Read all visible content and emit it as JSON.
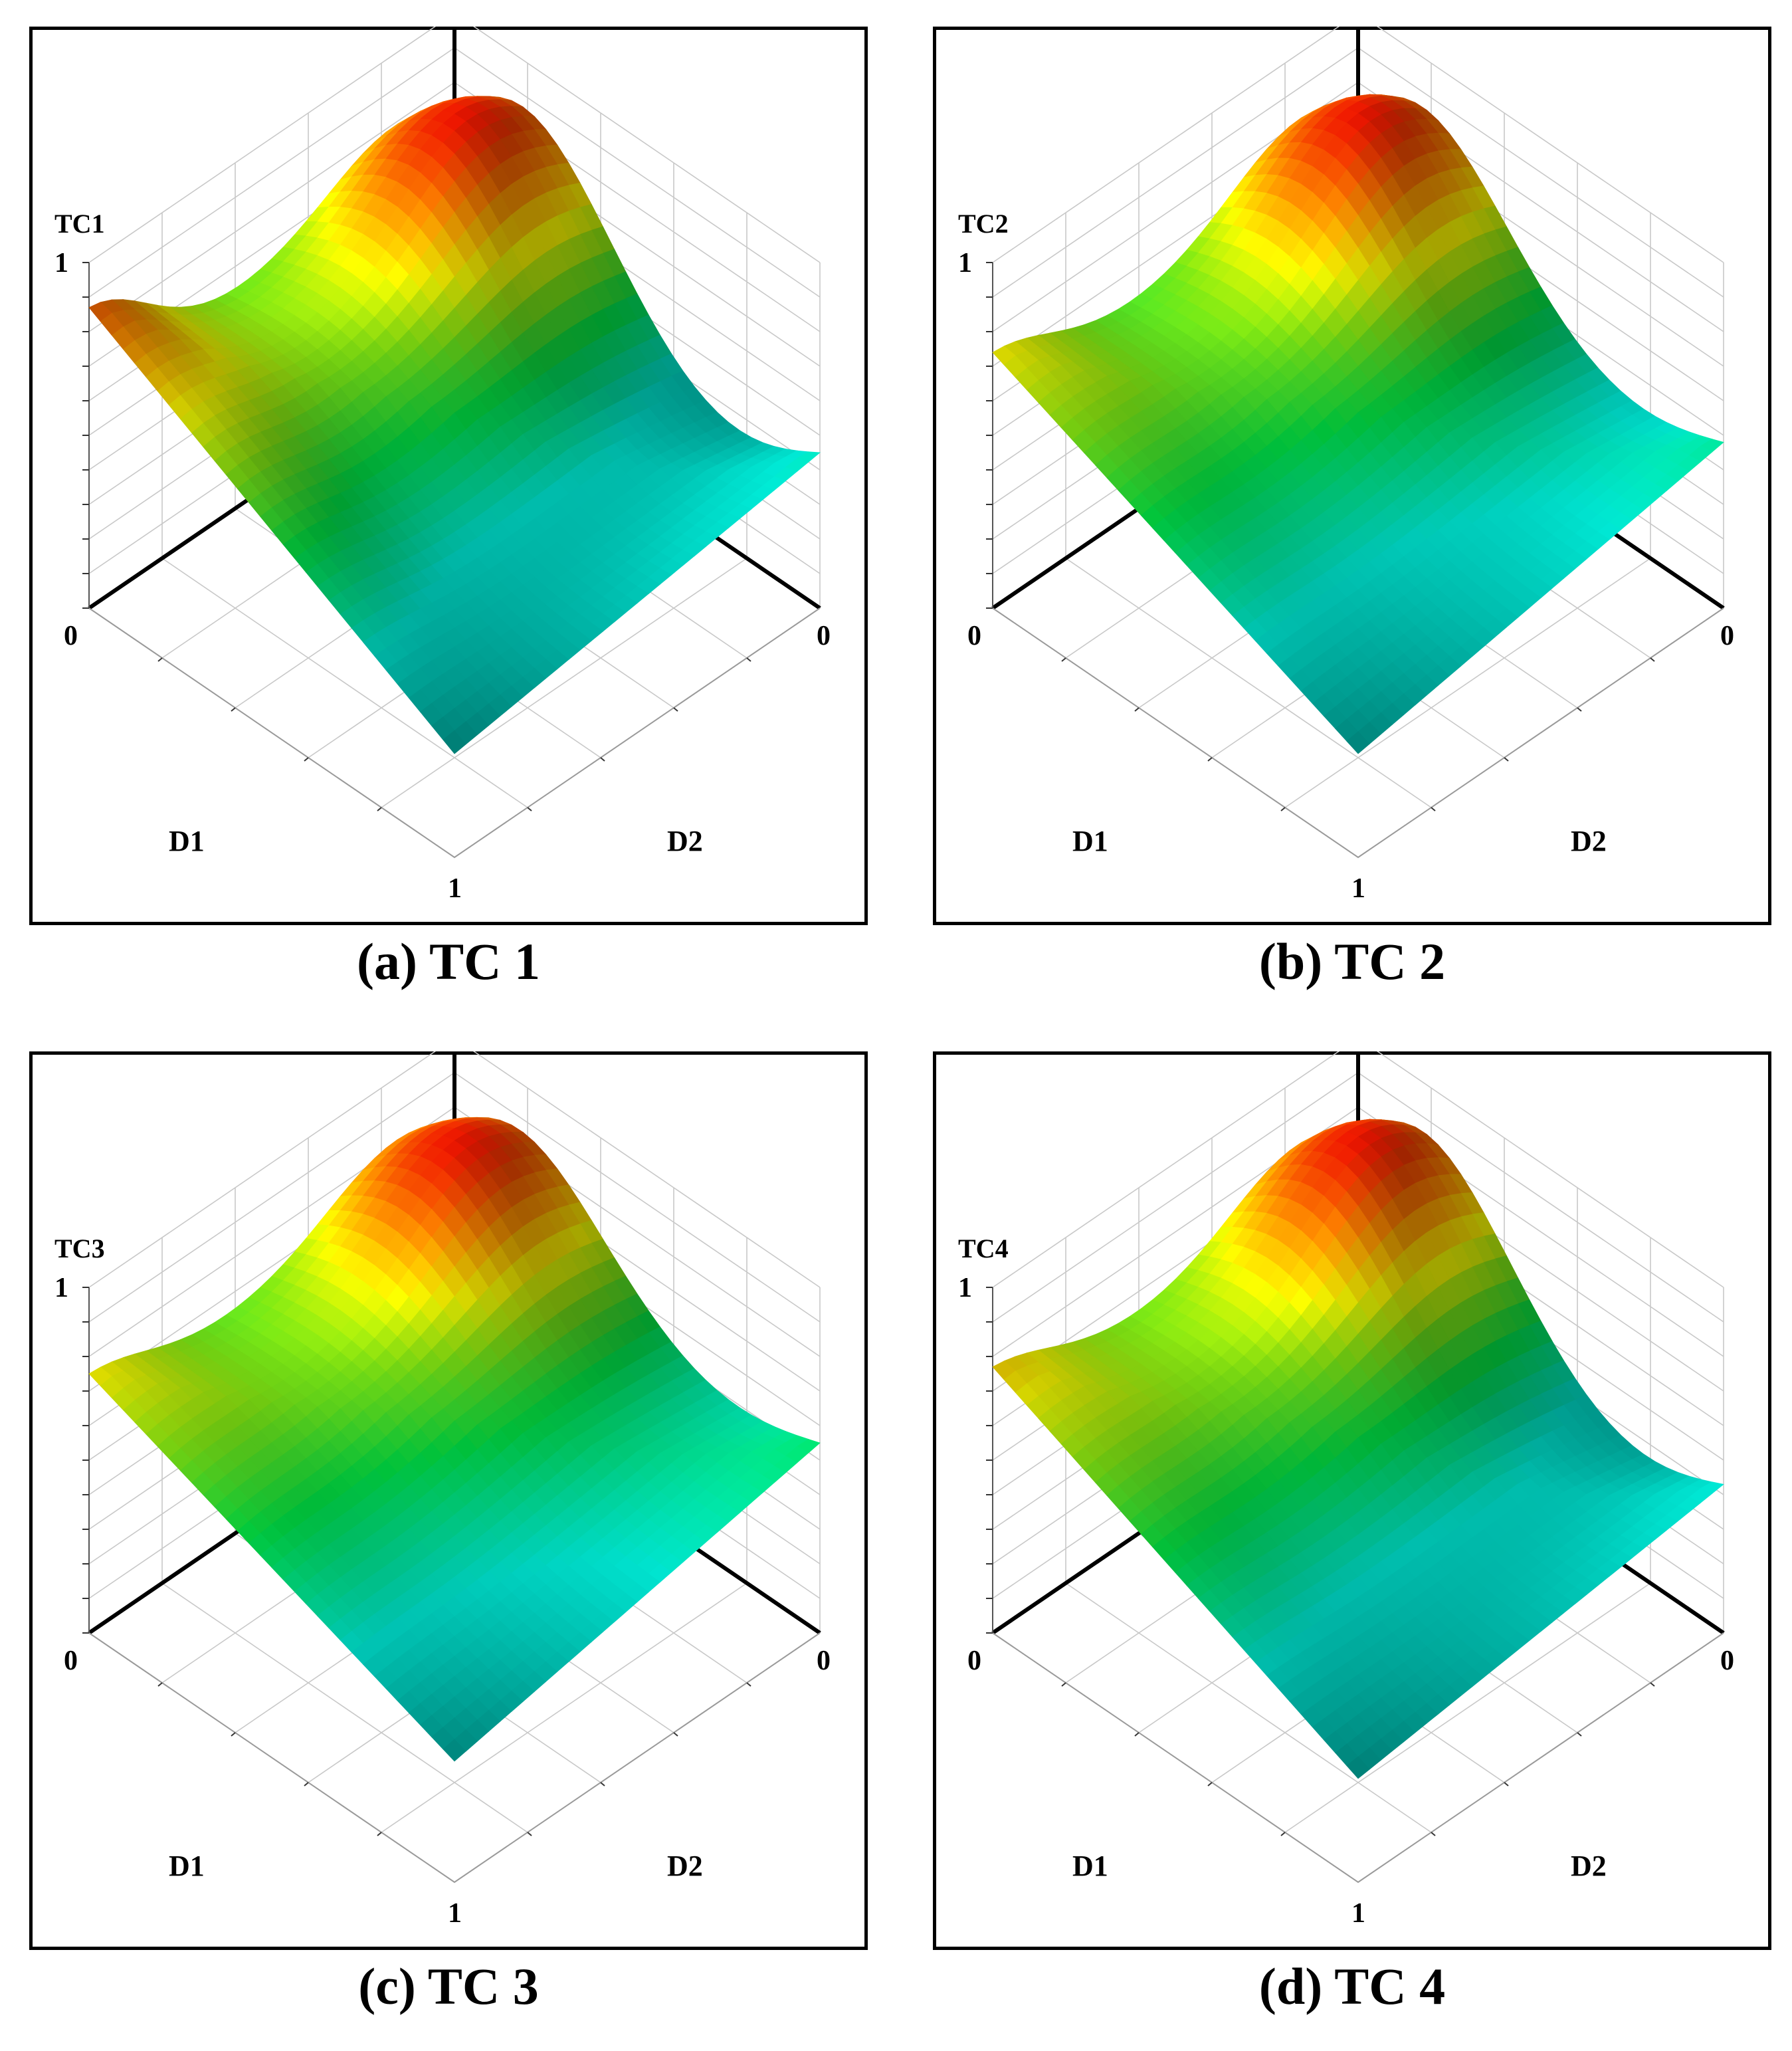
{
  "chart_data": [
    {
      "type": "surface",
      "caption": "(a) TC 1",
      "zlabel": "TC1",
      "xlabel": "D1",
      "ylabel": "D2",
      "xlim": [
        0,
        1
      ],
      "ylim": [
        0,
        1
      ],
      "zlim": [
        0,
        1
      ],
      "x_ticks": [
        "0",
        "1"
      ],
      "y_ticks": [
        "0"
      ],
      "z_ticks": [
        "1"
      ],
      "grid": true,
      "surface_params": {
        "base": 0.55,
        "peak": 0.3,
        "ridge": 0.22,
        "wave": 0.12,
        "tilt": -0.1
      }
    },
    {
      "type": "surface",
      "caption": "(b) TC 2",
      "zlabel": "TC2",
      "xlabel": "D1",
      "ylabel": "D2",
      "xlim": [
        0,
        1
      ],
      "ylim": [
        0,
        1
      ],
      "zlim": [
        0,
        1
      ],
      "x_ticks": [
        "0",
        "1"
      ],
      "y_ticks": [
        "0"
      ],
      "z_ticks": [
        "1"
      ],
      "grid": true,
      "surface_params": {
        "base": 0.55,
        "peak": 0.33,
        "ridge": 0.12,
        "wave": 0.08,
        "tilt": -0.04
      }
    },
    {
      "type": "surface",
      "caption": "(c) TC 3",
      "zlabel": "TC3",
      "xlabel": "D1",
      "ylabel": "D2",
      "xlim": [
        0,
        1
      ],
      "ylim": [
        0,
        1
      ],
      "zlim": [
        0,
        1
      ],
      "x_ticks": [
        "0",
        "1"
      ],
      "y_ticks": [
        "0"
      ],
      "z_ticks": [
        "1"
      ],
      "grid": true,
      "surface_params": {
        "base": 0.6,
        "peak": 0.28,
        "ridge": 0.1,
        "wave": 0.07,
        "tilt": 0.0
      }
    },
    {
      "type": "surface",
      "caption": "(d) TC 4",
      "zlabel": "TC4",
      "xlabel": "D1",
      "ylabel": "D2",
      "xlim": [
        0,
        1
      ],
      "ylim": [
        0,
        1
      ],
      "zlim": [
        0,
        1
      ],
      "x_ticks": [
        "0",
        "1"
      ],
      "y_ticks": [
        "0"
      ],
      "z_ticks": [
        "1"
      ],
      "grid": true,
      "surface_params": {
        "base": 0.55,
        "peak": 0.32,
        "ridge": 0.1,
        "wave": 0.1,
        "tilt": -0.14
      }
    }
  ]
}
